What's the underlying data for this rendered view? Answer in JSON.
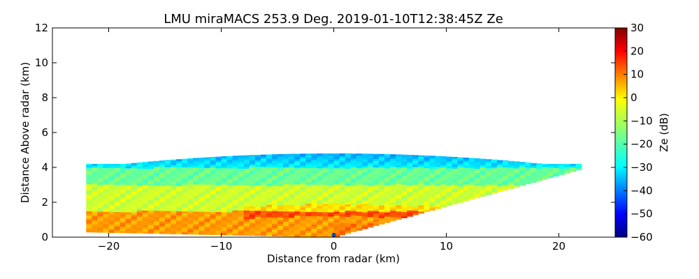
{
  "chart_data": {
    "type": "heatmap",
    "title": "LMU miraMACS 253.9 Deg. 2019-01-10T12:38:45Z  Ze",
    "xlabel": "Distance from radar (km)",
    "ylabel": "Distance Above radar  (km)",
    "xlim": [
      -25,
      25
    ],
    "ylim": [
      0,
      12
    ],
    "xticks": [
      -20,
      -10,
      0,
      10,
      20
    ],
    "xtick_labels": [
      "−20",
      "−10",
      "0",
      "10",
      "20"
    ],
    "yticks": [
      0,
      2,
      4,
      6,
      8,
      10,
      12
    ],
    "ytick_labels": [
      "0",
      "2",
      "4",
      "6",
      "8",
      "10",
      "12"
    ],
    "grid": false,
    "colorbar": {
      "label": "Ze (dB)",
      "range": [
        -60,
        30
      ],
      "ticks": [
        -60,
        -50,
        -40,
        -30,
        -20,
        -10,
        0,
        10,
        20,
        30
      ],
      "tick_labels": [
        "−60",
        "−50",
        "−40",
        "−30",
        "−20",
        "−10",
        "0",
        "10",
        "20",
        "30"
      ],
      "colormap": "jet",
      "colors": [
        "#00007f",
        "#0000ff",
        "#007fff",
        "#00ffff",
        "#7fff7f",
        "#ffff00",
        "#ff7f00",
        "#ff0000",
        "#7f0000"
      ]
    },
    "echo_region": {
      "description_units": "km",
      "left_edge_x": -22,
      "right_edge_x": 22,
      "top_height_left": 4.2,
      "top_height_center": 4.8,
      "top_height_right": 4.2,
      "bottom_height_left": 0.3,
      "bottom_height_right": 3.9,
      "radar_position": [
        0,
        0
      ]
    },
    "layers": [
      {
        "height_range": [
          0,
          1.5
        ],
        "ze_dB": 5
      },
      {
        "height_range": [
          1.5,
          3.0
        ],
        "ze_dB": -8
      },
      {
        "height_range": [
          3.0,
          4.0
        ],
        "ze_dB": -17
      },
      {
        "height_range": [
          4.0,
          4.8
        ],
        "ze_dB": -28
      }
    ]
  }
}
